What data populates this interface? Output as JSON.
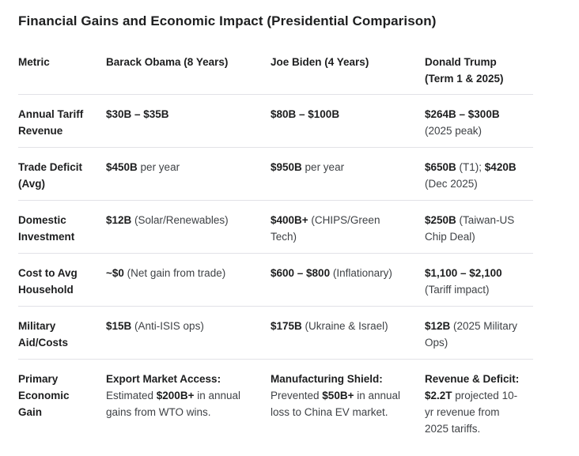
{
  "page": {
    "title": "Financial Gains and Economic Impact (Presidential Comparison)"
  },
  "table": {
    "columns": [
      "Metric",
      "Barack Obama (8 Years)",
      "Joe Biden (4 Years)",
      "Donald Trump (Term 1 & 2025)"
    ],
    "rows": [
      {
        "metric": "Annual Tariff Revenue",
        "cells": [
          [
            {
              "t": "$30B – $35B",
              "b": true
            }
          ],
          [
            {
              "t": "$80B – $100B",
              "b": true
            }
          ],
          [
            {
              "t": "$264B – $300B",
              "b": true
            },
            {
              "t": " (2025 peak)",
              "b": false
            }
          ]
        ]
      },
      {
        "metric": "Trade Deficit (Avg)",
        "cells": [
          [
            {
              "t": "$450B",
              "b": true
            },
            {
              "t": " per year",
              "b": false
            }
          ],
          [
            {
              "t": "$950B",
              "b": true
            },
            {
              "t": " per year",
              "b": false
            }
          ],
          [
            {
              "t": "$650B",
              "b": true
            },
            {
              "t": " (T1); ",
              "b": false
            },
            {
              "t": "$420B",
              "b": true
            },
            {
              "t": " (Dec 2025)",
              "b": false
            }
          ]
        ]
      },
      {
        "metric": "Domestic Investment",
        "cells": [
          [
            {
              "t": "$12B",
              "b": true
            },
            {
              "t": " (Solar/Renewables)",
              "b": false
            }
          ],
          [
            {
              "t": "$400B+",
              "b": true
            },
            {
              "t": " (CHIPS/Green Tech)",
              "b": false
            }
          ],
          [
            {
              "t": "$250B",
              "b": true
            },
            {
              "t": " (Taiwan-US Chip Deal)",
              "b": false
            }
          ]
        ]
      },
      {
        "metric": "Cost to Avg Household",
        "cells": [
          [
            {
              "t": "~$0",
              "b": true
            },
            {
              "t": " (Net gain from trade)",
              "b": false
            }
          ],
          [
            {
              "t": "$600 – $800",
              "b": true
            },
            {
              "t": " (Inflationary)",
              "b": false
            }
          ],
          [
            {
              "t": "$1,100 – $2,100",
              "b": true
            },
            {
              "t": " (Tariff impact)",
              "b": false
            }
          ]
        ]
      },
      {
        "metric": "Military Aid/Costs",
        "cells": [
          [
            {
              "t": "$15B",
              "b": true
            },
            {
              "t": " (Anti-ISIS ops)",
              "b": false
            }
          ],
          [
            {
              "t": "$175B",
              "b": true
            },
            {
              "t": " (Ukraine & Israel)",
              "b": false
            }
          ],
          [
            {
              "t": "$12B",
              "b": true
            },
            {
              "t": " (2025 Military Ops)",
              "b": false
            }
          ]
        ]
      },
      {
        "metric": "Primary Economic Gain",
        "cells": [
          [
            {
              "t": "Export Market Access:",
              "b": true
            },
            {
              "t": " Estimated ",
              "b": false
            },
            {
              "t": "$200B+",
              "b": true
            },
            {
              "t": " in annual gains from WTO wins.",
              "b": false
            }
          ],
          [
            {
              "t": "Manufacturing Shield:",
              "b": true
            },
            {
              "t": " Prevented ",
              "b": false
            },
            {
              "t": "$50B+",
              "b": true
            },
            {
              "t": " in annual loss to China EV market.",
              "b": false
            }
          ],
          [
            {
              "t": "Revenue & Deficit: $2.2T",
              "b": true
            },
            {
              "t": " projected 10-yr revenue from 2025 tariffs.",
              "b": false
            }
          ]
        ]
      }
    ]
  },
  "colors": {
    "background": "#ffffff",
    "text_primary": "#1d1e1f",
    "text_secondary": "#3f4246",
    "divider": "#e2e2e7"
  }
}
